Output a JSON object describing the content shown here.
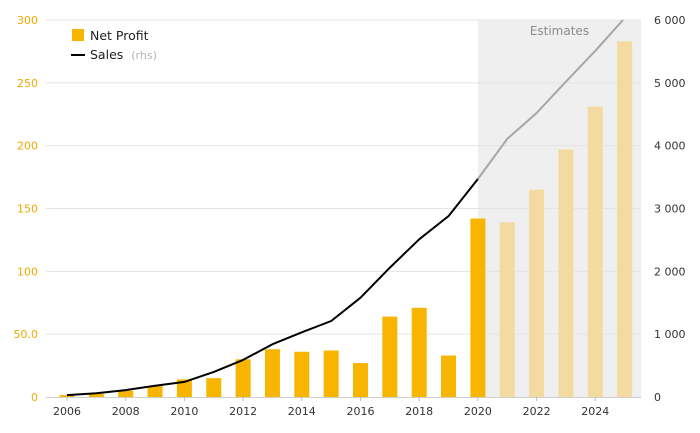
{
  "chart_data": {
    "type": "bar+line",
    "x": [
      2006,
      2007,
      2008,
      2009,
      2010,
      2011,
      2012,
      2013,
      2014,
      2015,
      2016,
      2017,
      2018,
      2019,
      2020,
      2021,
      2022,
      2023,
      2024,
      2025
    ],
    "x_tick_labels": [
      "2006",
      "2008",
      "2010",
      "2012",
      "2014",
      "2016",
      "2018",
      "2020",
      "2022",
      "2024"
    ],
    "left_axis": {
      "ylim": [
        0,
        300
      ],
      "tick_labels": [
        "0",
        "50.0",
        "100",
        "150",
        "200",
        "250",
        "300"
      ],
      "tick_values": [
        0,
        50,
        100,
        150,
        200,
        250,
        300
      ]
    },
    "right_axis": {
      "ylim": [
        0,
        6000
      ],
      "tick_labels": [
        "0",
        "1 000",
        "2 000",
        "3 000",
        "4 000",
        "5 000",
        "6 000"
      ],
      "tick_values": [
        0,
        1000,
        2000,
        3000,
        4000,
        5000,
        6000
      ]
    },
    "series": [
      {
        "name": "Net Profit",
        "type": "bar",
        "axis": "left",
        "values": [
          1.5,
          2.5,
          5,
          9,
          14,
          15,
          30,
          38,
          36,
          37,
          27,
          64,
          71,
          33,
          142,
          139,
          165,
          197,
          231,
          283
        ],
        "estimate": [
          false,
          false,
          false,
          false,
          false,
          false,
          false,
          false,
          false,
          false,
          false,
          false,
          false,
          false,
          false,
          true,
          true,
          true,
          true,
          true
        ]
      },
      {
        "name": "Sales",
        "suffix": "(rhs)",
        "type": "line",
        "axis": "right",
        "values": [
          30,
          60,
          110,
          180,
          240,
          400,
          590,
          840,
          1030,
          1210,
          1580,
          2060,
          2510,
          2880,
          3470,
          4110,
          4520,
          5020,
          5510,
          6030
        ]
      }
    ],
    "estimate_start": 2020,
    "estimate_label": "Estimates",
    "grid": true,
    "legend": "top-left",
    "colors": {
      "bar": "#f7b500",
      "bar_estimate": "#f3daa0",
      "line": "#000000",
      "line_estimate": "#a6a6a6",
      "shade": "#efefef",
      "left_ticks": "#f0a800",
      "grid": "#e4e4e4"
    }
  }
}
